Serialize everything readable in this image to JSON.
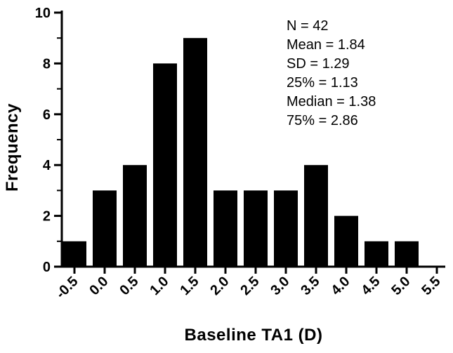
{
  "figure": {
    "background": "#ffffff",
    "bar_color": "#000000",
    "axis_color": "#000000"
  },
  "chart_data": {
    "type": "bar",
    "title": "",
    "xlabel": "Baseline TA1 (D)",
    "ylabel": "Frequency",
    "categories": [
      "-0.5",
      "0.0",
      "0.5",
      "1.0",
      "1.5",
      "2.0",
      "2.5",
      "3.0",
      "3.5",
      "4.0",
      "4.5",
      "5.0",
      "5.5"
    ],
    "values": [
      1,
      3,
      4,
      8,
      9,
      3,
      3,
      3,
      4,
      2,
      1,
      1,
      0
    ],
    "ylim": [
      0,
      10
    ],
    "y_major_ticks": [
      0,
      2,
      4,
      6,
      8,
      10
    ],
    "y_minor_ticks": [
      1,
      3,
      5,
      7,
      9
    ],
    "grid": false,
    "legend": "none",
    "annotations": [
      "N = 42",
      "Mean = 1.84",
      "SD = 1.29",
      "25% = 1.13",
      "Median = 1.38",
      "75% = 2.86"
    ],
    "stats": {
      "n": 42,
      "mean": 1.84,
      "sd": 1.29,
      "pct25": 1.13,
      "median": 1.38,
      "pct75": 2.86
    }
  }
}
